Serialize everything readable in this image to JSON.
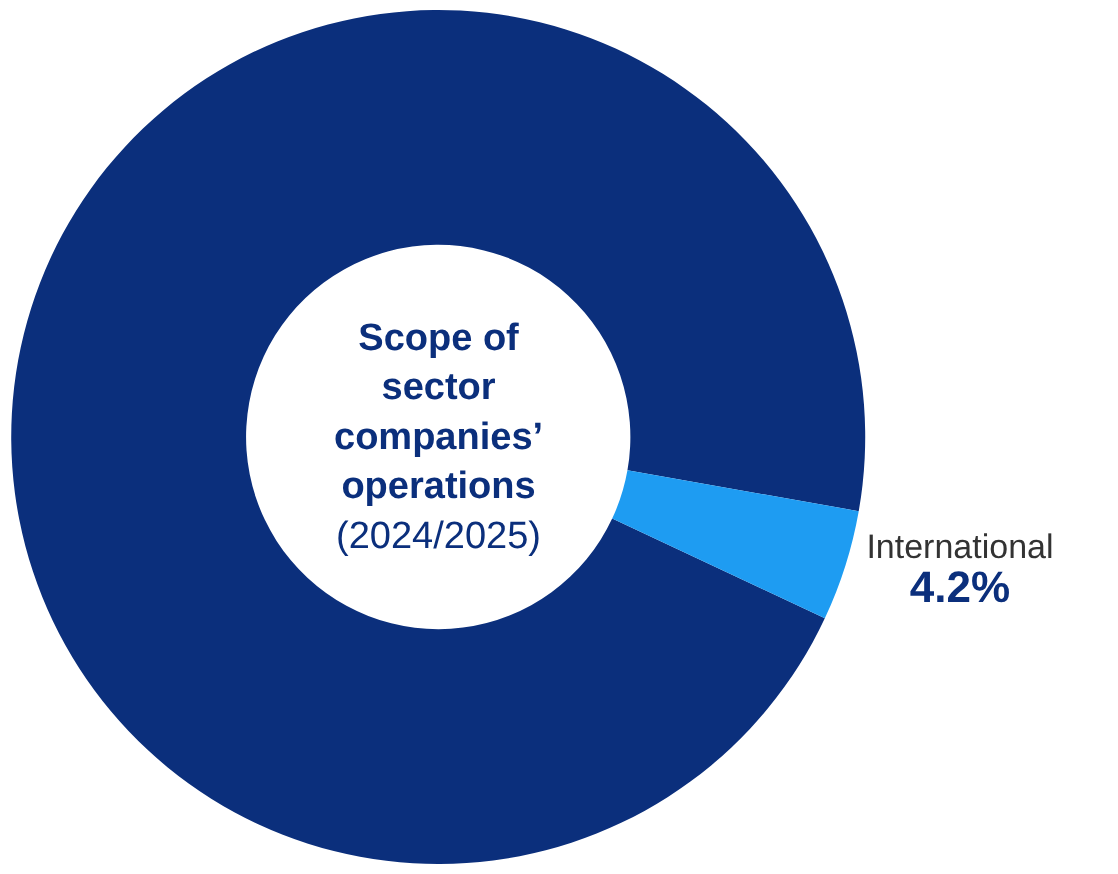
{
  "chart_data": {
    "type": "donut",
    "title": "Scope of sector companies’ operations",
    "subtitle": "(2024/2025)",
    "categories": [
      null,
      "International"
    ],
    "values": [
      95.8,
      4.2
    ],
    "colors": [
      "#0b2f7c",
      "#1e9cf2"
    ],
    "value_labels": [
      null,
      "4.2%"
    ],
    "legend": false
  }
}
